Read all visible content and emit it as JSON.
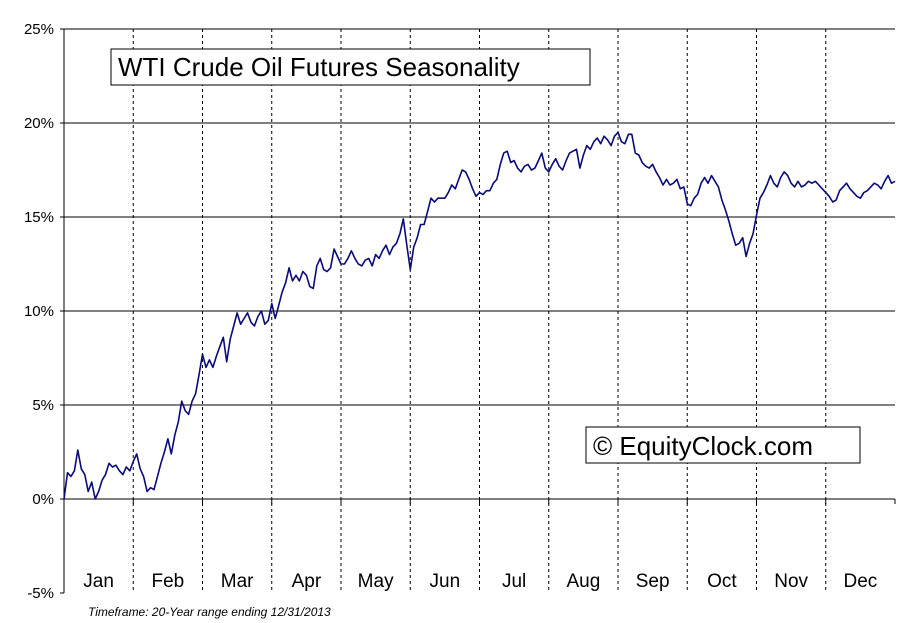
{
  "chart_data": {
    "type": "line",
    "title": "WTI Crude Oil Futures Seasonality",
    "watermark": "© EquityClock.com",
    "footnote": "Timeframe: 20-Year range ending 12/31/2013",
    "xlabel": "",
    "ylabel": "",
    "categories": [
      "Jan",
      "Feb",
      "Mar",
      "Apr",
      "May",
      "Jun",
      "Jul",
      "Aug",
      "Sep",
      "Oct",
      "Nov",
      "Dec"
    ],
    "y_ticks": [
      "25%",
      "20%",
      "15%",
      "10%",
      "5%",
      "0%",
      "-5%"
    ],
    "ylim": [
      -5,
      25
    ],
    "xlim": [
      0,
      12
    ],
    "grid": {
      "horizontal": "solid",
      "vertical_month_boundaries": "dotted"
    },
    "line_color": "#0a0a78",
    "series": [
      {
        "x": [
          0.0,
          0.05,
          0.1,
          0.15,
          0.2,
          0.25,
          0.3,
          0.35,
          0.4,
          0.45,
          0.5,
          0.55,
          0.6,
          0.65,
          0.7,
          0.75,
          0.8,
          0.85,
          0.9,
          0.95,
          1.0,
          1.05,
          1.1,
          1.15,
          1.2,
          1.25,
          1.3,
          1.35,
          1.4,
          1.45,
          1.5,
          1.55,
          1.6,
          1.65,
          1.7,
          1.75,
          1.8,
          1.85,
          1.9,
          1.95,
          2.0,
          2.05,
          2.1,
          2.15,
          2.2,
          2.25,
          2.3,
          2.35,
          2.4,
          2.45,
          2.5,
          2.55,
          2.6,
          2.65,
          2.7,
          2.75,
          2.8,
          2.85,
          2.9,
          2.95,
          3.0,
          3.05,
          3.1,
          3.15,
          3.2,
          3.25,
          3.3,
          3.35,
          3.4,
          3.45,
          3.5,
          3.55,
          3.6,
          3.65,
          3.7,
          3.75,
          3.8,
          3.85,
          3.9,
          3.95,
          4.0,
          4.05,
          4.1,
          4.15,
          4.2,
          4.25,
          4.3,
          4.35,
          4.4,
          4.45,
          4.5,
          4.55,
          4.6,
          4.65,
          4.7,
          4.75,
          4.8,
          4.85,
          4.9,
          4.95,
          5.0,
          5.05,
          5.1,
          5.15,
          5.2,
          5.25,
          5.3,
          5.35,
          5.4,
          5.45,
          5.5,
          5.55,
          5.6,
          5.65,
          5.7,
          5.75,
          5.8,
          5.85,
          5.9,
          5.95,
          6.0,
          6.05,
          6.1,
          6.15,
          6.2,
          6.25,
          6.3,
          6.35,
          6.4,
          6.45,
          6.5,
          6.55,
          6.6,
          6.65,
          6.7,
          6.75,
          6.8,
          6.85,
          6.9,
          6.95,
          7.0,
          7.05,
          7.1,
          7.15,
          7.2,
          7.25,
          7.3,
          7.35,
          7.4,
          7.45,
          7.5,
          7.55,
          7.6,
          7.65,
          7.7,
          7.75,
          7.8,
          7.85,
          7.9,
          7.95,
          8.0,
          8.05,
          8.1,
          8.15,
          8.2,
          8.25,
          8.3,
          8.35,
          8.4,
          8.45,
          8.5,
          8.55,
          8.6,
          8.65,
          8.7,
          8.75,
          8.8,
          8.85,
          8.9,
          8.95,
          9.0,
          9.05,
          9.1,
          9.15,
          9.2,
          9.25,
          9.3,
          9.35,
          9.4,
          9.45,
          9.5,
          9.55,
          9.6,
          9.65,
          9.7,
          9.75,
          9.8,
          9.85,
          9.9,
          9.95,
          10.0,
          10.05,
          10.1,
          10.15,
          10.2,
          10.25,
          10.3,
          10.35,
          10.4,
          10.45,
          10.5,
          10.55,
          10.6,
          10.65,
          10.7,
          10.75,
          10.8,
          10.85,
          10.9,
          10.95,
          11.0,
          11.05,
          11.1,
          11.15,
          11.2,
          11.25,
          11.3,
          11.35,
          11.4,
          11.45,
          11.5,
          11.55,
          11.6,
          11.65,
          11.7,
          11.75,
          11.8,
          11.85,
          11.9,
          11.95,
          12.0
        ],
        "y": [
          0.0,
          1.4,
          1.2,
          1.5,
          2.6,
          1.6,
          1.3,
          0.4,
          0.9,
          0.0,
          0.4,
          1.0,
          1.3,
          1.9,
          1.7,
          1.8,
          1.5,
          1.3,
          1.7,
          1.5,
          2.0,
          2.4,
          1.6,
          1.2,
          0.4,
          0.6,
          0.5,
          1.2,
          1.9,
          2.5,
          3.2,
          2.4,
          3.4,
          4.1,
          5.2,
          4.7,
          4.5,
          5.2,
          5.6,
          6.6,
          7.7,
          7.0,
          7.4,
          7.0,
          7.6,
          8.1,
          8.6,
          7.3,
          8.5,
          9.2,
          9.9,
          9.3,
          9.6,
          9.9,
          9.4,
          9.2,
          9.7,
          10.0,
          9.3,
          9.5,
          10.4,
          9.6,
          10.3,
          11.0,
          11.5,
          12.3,
          11.6,
          11.9,
          11.6,
          12.1,
          11.9,
          11.3,
          11.2,
          12.4,
          12.8,
          12.2,
          12.1,
          12.3,
          13.3,
          12.9,
          12.5,
          12.5,
          12.8,
          13.2,
          12.8,
          12.5,
          12.4,
          12.7,
          12.8,
          12.4,
          13.0,
          12.8,
          13.2,
          13.5,
          13.0,
          13.4,
          13.6,
          14.1,
          14.9,
          13.5,
          12.2,
          13.4,
          13.9,
          14.6,
          14.6,
          15.3,
          16.0,
          15.8,
          16.0,
          16.0,
          16.0,
          16.3,
          16.7,
          16.5,
          17.0,
          17.5,
          17.4,
          17.0,
          16.5,
          16.1,
          16.3,
          16.2,
          16.4,
          16.4,
          16.8,
          17.0,
          17.8,
          18.4,
          18.5,
          17.9,
          18.0,
          17.6,
          17.4,
          17.7,
          17.8,
          17.5,
          17.6,
          18.0,
          18.4,
          17.6,
          17.4,
          17.8,
          18.1,
          17.7,
          17.5,
          18.0,
          18.4,
          18.5,
          18.6,
          17.6,
          18.3,
          18.8,
          18.6,
          19.0,
          19.2,
          18.9,
          19.3,
          19.1,
          18.8,
          19.3,
          19.5,
          19.0,
          18.9,
          19.4,
          19.4,
          18.4,
          18.3,
          17.9,
          17.7,
          17.6,
          17.8,
          17.4,
          17.1,
          16.7,
          17.0,
          16.7,
          16.8,
          17.0,
          16.5,
          16.6,
          15.7,
          15.6,
          16.0,
          16.2,
          16.8,
          17.1,
          16.8,
          17.2,
          16.9,
          16.6,
          15.9,
          15.4,
          14.8,
          14.1,
          13.5,
          13.6,
          13.9,
          12.9,
          13.6,
          14.1,
          15.1,
          16.0,
          16.3,
          16.7,
          17.2,
          16.8,
          16.6,
          17.1,
          17.4,
          17.2,
          16.8,
          16.6,
          16.9,
          16.6,
          16.7,
          16.9,
          16.8,
          16.9,
          16.7,
          16.5,
          16.3,
          16.1,
          15.8,
          15.9,
          16.4,
          16.6,
          16.8,
          16.5,
          16.3,
          16.1,
          16.0,
          16.3,
          16.4,
          16.6,
          16.8,
          16.7,
          16.5,
          16.9,
          17.2,
          16.8,
          16.9
        ]
      }
    ]
  }
}
